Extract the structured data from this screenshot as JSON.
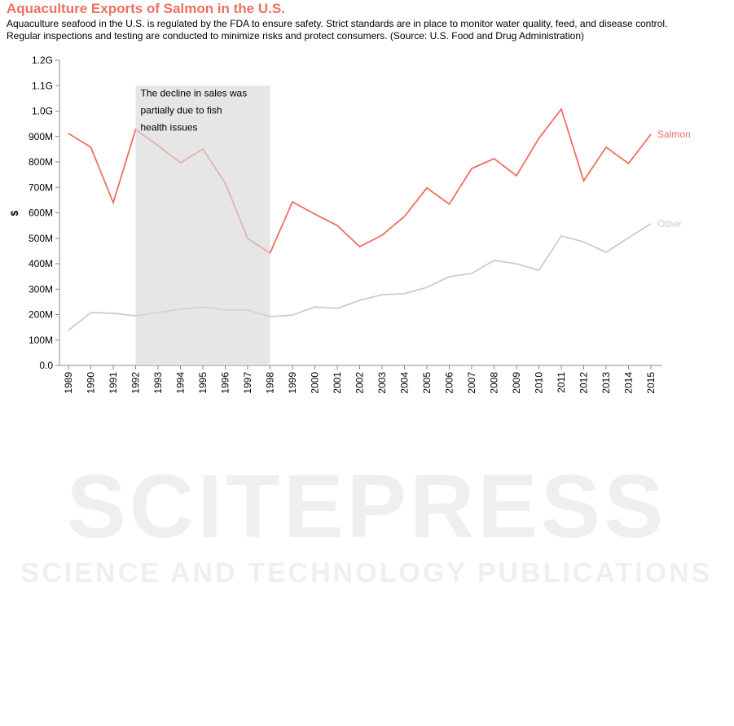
{
  "chart_data": {
    "type": "line",
    "title": "Aquaculture Exports of Salmon in the U.S.",
    "subtitle": [
      "Aquaculture seafood in the U.S. is regulated by the FDA to ensure safety. Strict standards are in place to monitor water quality, feed, and disease control.",
      "Regular inspections and testing are conducted to minimize risks and protect consumers. (Source: U.S. Food and Drug Administration)"
    ],
    "y_label": "$",
    "categories": [
      "1989",
      "1990",
      "1991",
      "1992",
      "1993",
      "1994",
      "1995",
      "1996",
      "1997",
      "1998",
      "1999",
      "2000",
      "2001",
      "2002",
      "2003",
      "2004",
      "2005",
      "2006",
      "2007",
      "2008",
      "2009",
      "2010",
      "2011",
      "2012",
      "2013",
      "2014",
      "2015"
    ],
    "series": [
      {
        "name": "Salmon",
        "color": "#ee7060",
        "values": [
          912000000,
          858000000,
          640000000,
          928000000,
          864000000,
          797000000,
          851000000,
          717000000,
          499000000,
          442000000,
          643000000,
          595000000,
          550000000,
          467000000,
          512000000,
          586000000,
          698000000,
          634000000,
          774000000,
          813000000,
          746000000,
          893000000,
          1008000000,
          726000000,
          858000000,
          794000000,
          909000000
        ]
      },
      {
        "name": "Other",
        "color": "#cccccc",
        "values": [
          138000000,
          208000000,
          205000000,
          195000000,
          208000000,
          221000000,
          230000000,
          218000000,
          218000000,
          192000000,
          198000000,
          230000000,
          224000000,
          256000000,
          278000000,
          282000000,
          307000000,
          349000000,
          362000000,
          413000000,
          400000000,
          374000000,
          509000000,
          486000000,
          445000000,
          502000000,
          557000000
        ]
      }
    ],
    "ylim": [
      0,
      1200000000
    ],
    "yticks": [
      {
        "value": 0,
        "label": "0.0"
      },
      {
        "value": 100000000,
        "label": "100M"
      },
      {
        "value": 200000000,
        "label": "200M"
      },
      {
        "value": 300000000,
        "label": "300M"
      },
      {
        "value": 400000000,
        "label": "400M"
      },
      {
        "value": 500000000,
        "label": "500M"
      },
      {
        "value": 600000000,
        "label": "600M"
      },
      {
        "value": 700000000,
        "label": "700M"
      },
      {
        "value": 800000000,
        "label": "800M"
      },
      {
        "value": 900000000,
        "label": "900M"
      },
      {
        "value": 1000000000,
        "label": "1.0G"
      },
      {
        "value": 1100000000,
        "label": "1.1G"
      },
      {
        "value": 1200000000,
        "label": "1.2G"
      }
    ],
    "annotation": {
      "lines": [
        "The decline in sales was",
        "partially due to fish",
        "health issues"
      ],
      "range": [
        "1992",
        "1998"
      ],
      "ymax": 1100000000
    }
  },
  "watermark": {
    "title": "SCITEPRESS",
    "subtitle": "SCIENCE AND TECHNOLOGY PUBLICATIONS"
  }
}
